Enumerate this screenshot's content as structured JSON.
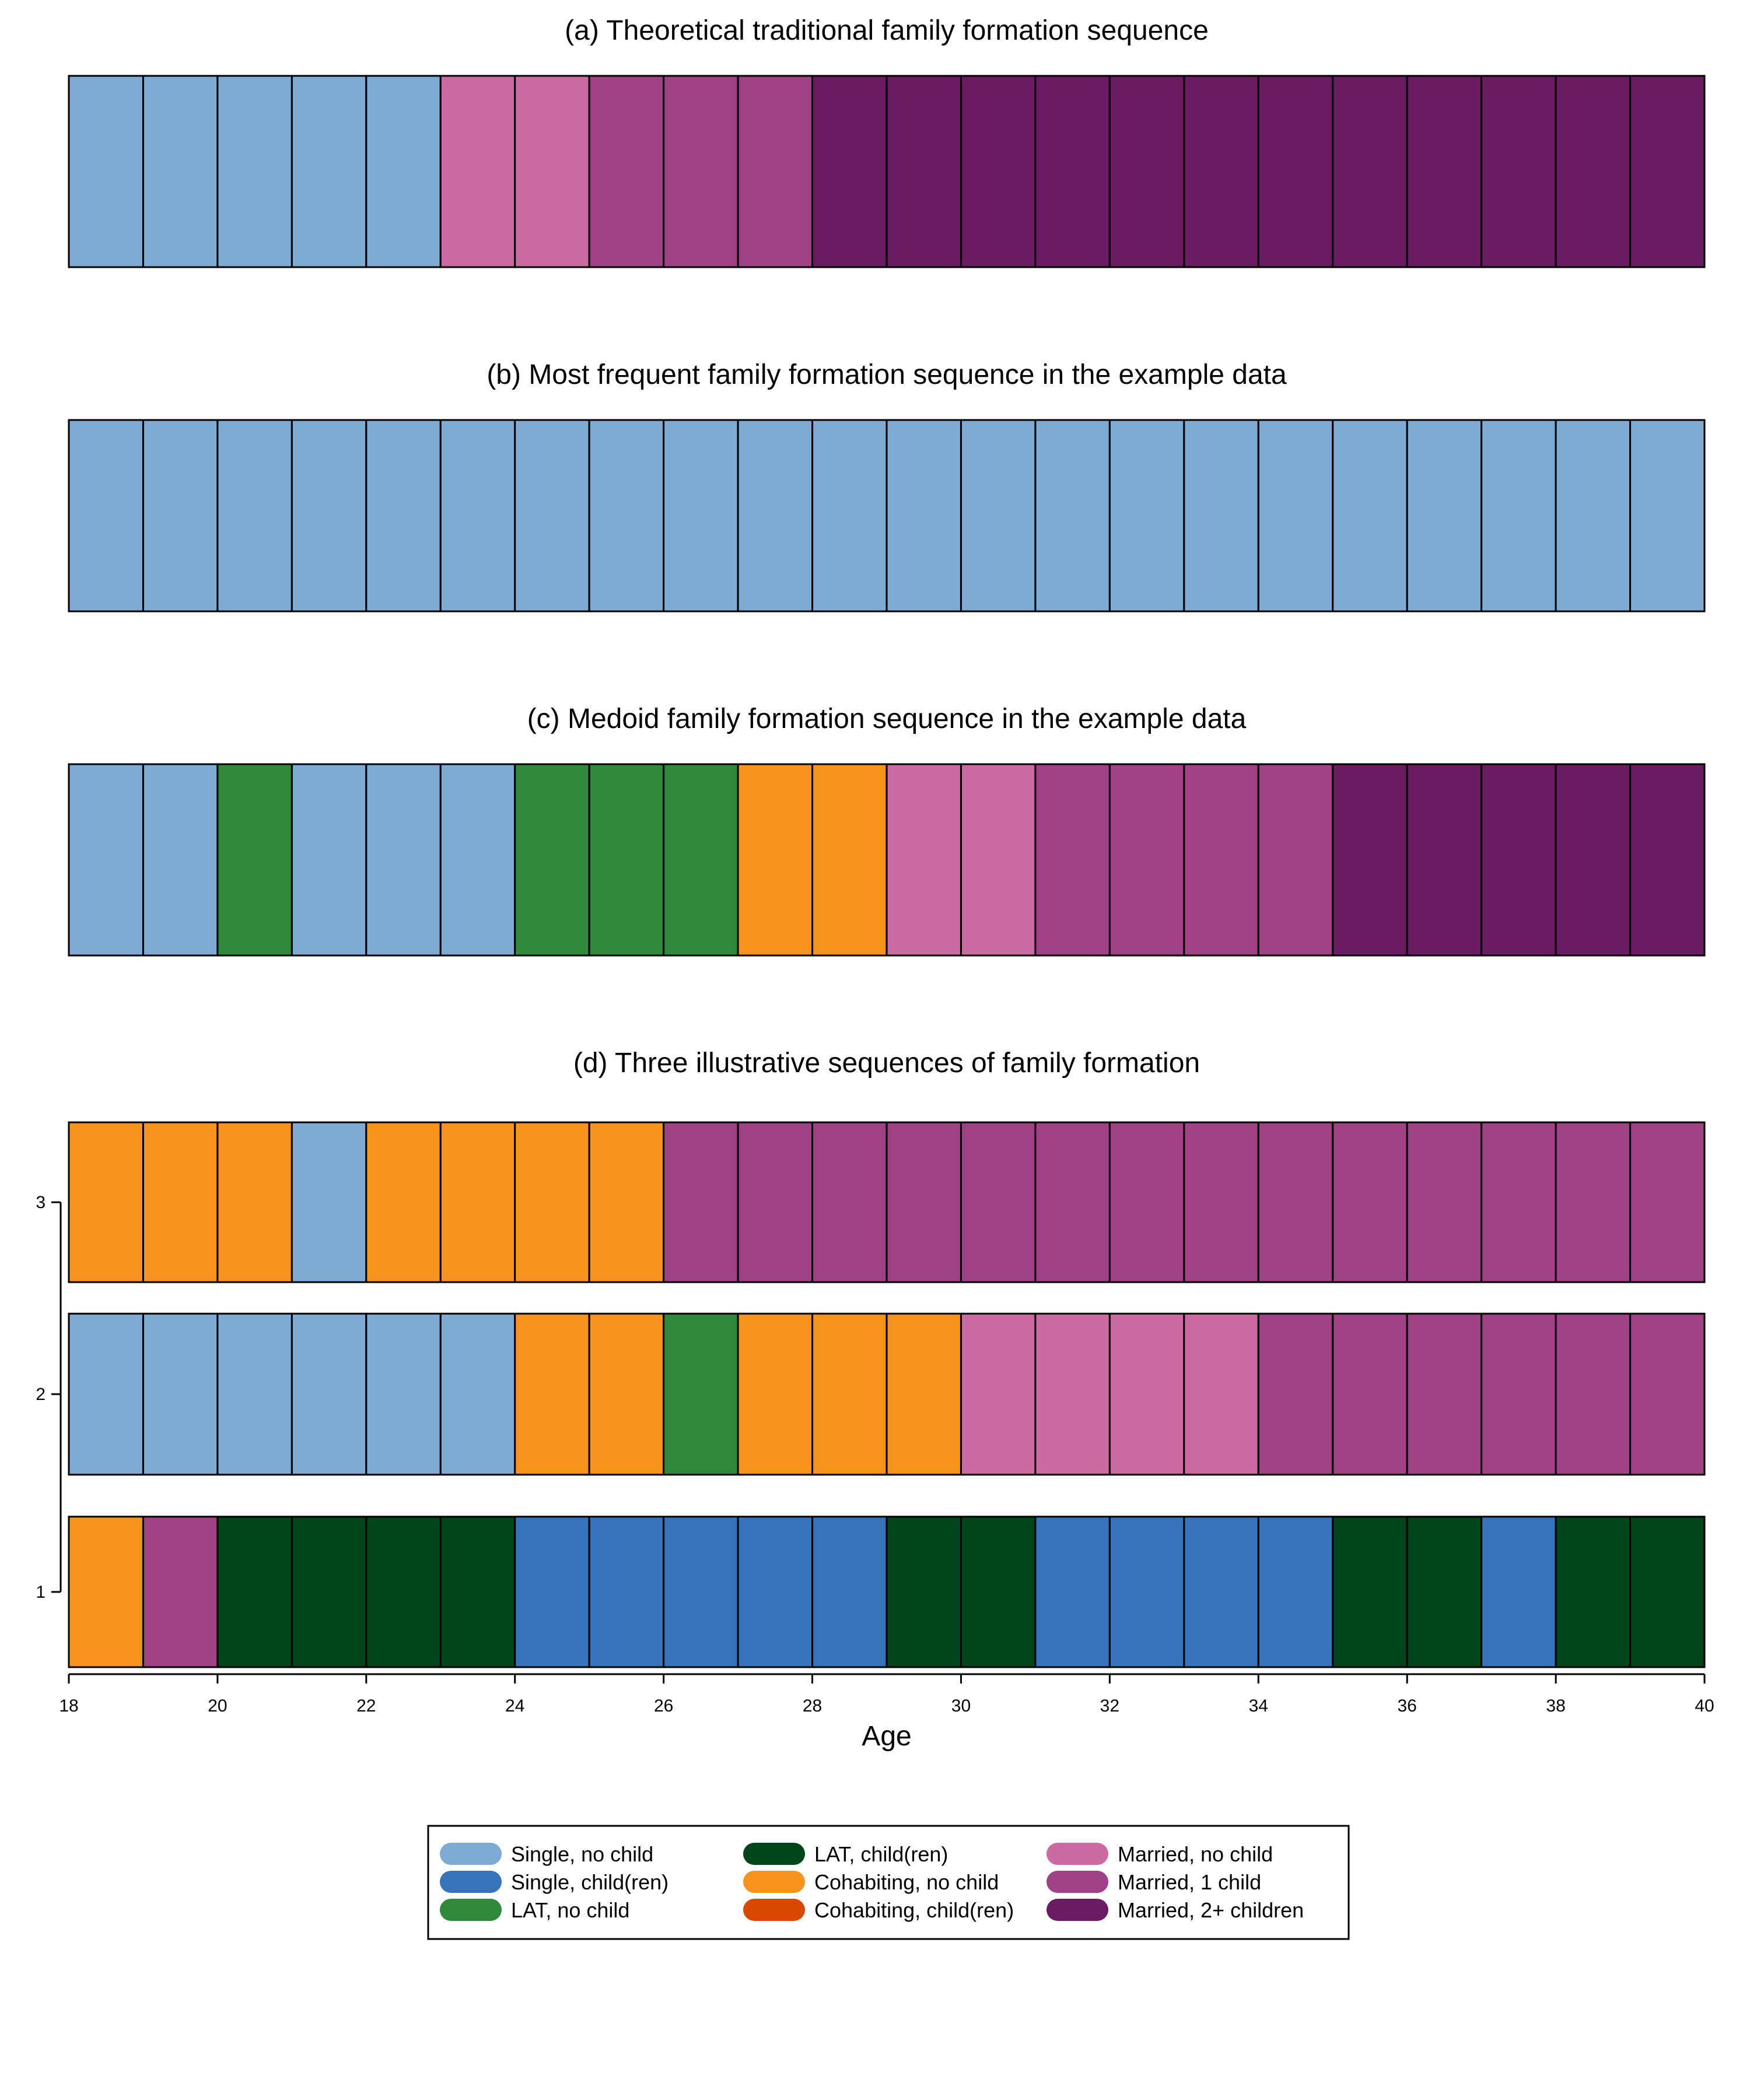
{
  "states": [
    {
      "code": "S0",
      "label": "Single, no child",
      "color": "#7eaad3"
    },
    {
      "code": "S1",
      "label": "Single, child(ren)",
      "color": "#3673bb"
    },
    {
      "code": "L0",
      "label": "LAT, no child",
      "color": "#2f883b"
    },
    {
      "code": "L1",
      "label": "LAT, child(ren)",
      "color": "#00441b"
    },
    {
      "code": "C0",
      "label": "Cohabiting, no child",
      "color": "#f7921f"
    },
    {
      "code": "C1",
      "label": "Cohabiting, child(ren)",
      "color": "#d94801"
    },
    {
      "code": "M0",
      "label": "Married, no child",
      "color": "#cb6ba1"
    },
    {
      "code": "M1",
      "label": "Married, 1 child",
      "color": "#9e4185"
    },
    {
      "code": "M2",
      "label": "Married, 2+ children",
      "color": "#6b1b62"
    }
  ],
  "chart_data": [
    {
      "type": "sequence-index",
      "title": "(a) Theoretical traditional family formation sequence",
      "x_start": 18,
      "x_end": 40,
      "sequences": [
        [
          "S0",
          "S0",
          "S0",
          "S0",
          "S0",
          "M0",
          "M0",
          "M1",
          "M1",
          "M1",
          "M2",
          "M2",
          "M2",
          "M2",
          "M2",
          "M2",
          "M2",
          "M2",
          "M2",
          "M2",
          "M2",
          "M2"
        ]
      ]
    },
    {
      "type": "sequence-index",
      "title": "(b) Most frequent family formation sequence in the example data",
      "x_start": 18,
      "x_end": 40,
      "sequences": [
        [
          "S0",
          "S0",
          "S0",
          "S0",
          "S0",
          "S0",
          "S0",
          "S0",
          "S0",
          "S0",
          "S0",
          "S0",
          "S0",
          "S0",
          "S0",
          "S0",
          "S0",
          "S0",
          "S0",
          "S0",
          "S0",
          "S0"
        ]
      ]
    },
    {
      "type": "sequence-index",
      "title": "(c) Medoid family formation sequence in the example data",
      "x_start": 18,
      "x_end": 40,
      "sequences": [
        [
          "S0",
          "S0",
          "L0",
          "S0",
          "S0",
          "S0",
          "L0",
          "L0",
          "L0",
          "C0",
          "C0",
          "M0",
          "M0",
          "M1",
          "M1",
          "M1",
          "M1",
          "M2",
          "M2",
          "M2",
          "M2",
          "M2"
        ]
      ]
    },
    {
      "type": "sequence-index",
      "title": "(d) Three illustrative sequences of family formation",
      "x_start": 18,
      "x_end": 40,
      "xlabel": "Age",
      "xticks": [
        18,
        20,
        22,
        24,
        26,
        28,
        30,
        32,
        34,
        36,
        38,
        40
      ],
      "yticks": [
        "1",
        "2",
        "3"
      ],
      "sequences": [
        [
          "C0",
          "M1",
          "L1",
          "L1",
          "L1",
          "L1",
          "S1",
          "S1",
          "S1",
          "S1",
          "S1",
          "L1",
          "L1",
          "S1",
          "S1",
          "S1",
          "S1",
          "L1",
          "L1",
          "S1",
          "L1",
          "L1"
        ],
        [
          "S0",
          "S0",
          "S0",
          "S0",
          "S0",
          "S0",
          "C0",
          "C0",
          "L0",
          "C0",
          "C0",
          "C0",
          "M0",
          "M0",
          "M0",
          "M0",
          "M1",
          "M1",
          "M1",
          "M1",
          "M1",
          "M1"
        ],
        [
          "C0",
          "C0",
          "C0",
          "S0",
          "C0",
          "C0",
          "C0",
          "C0",
          "M1",
          "M1",
          "M1",
          "M1",
          "M1",
          "M1",
          "M1",
          "M1",
          "M1",
          "M1",
          "M1",
          "M1",
          "M1",
          "M1"
        ]
      ]
    }
  ]
}
